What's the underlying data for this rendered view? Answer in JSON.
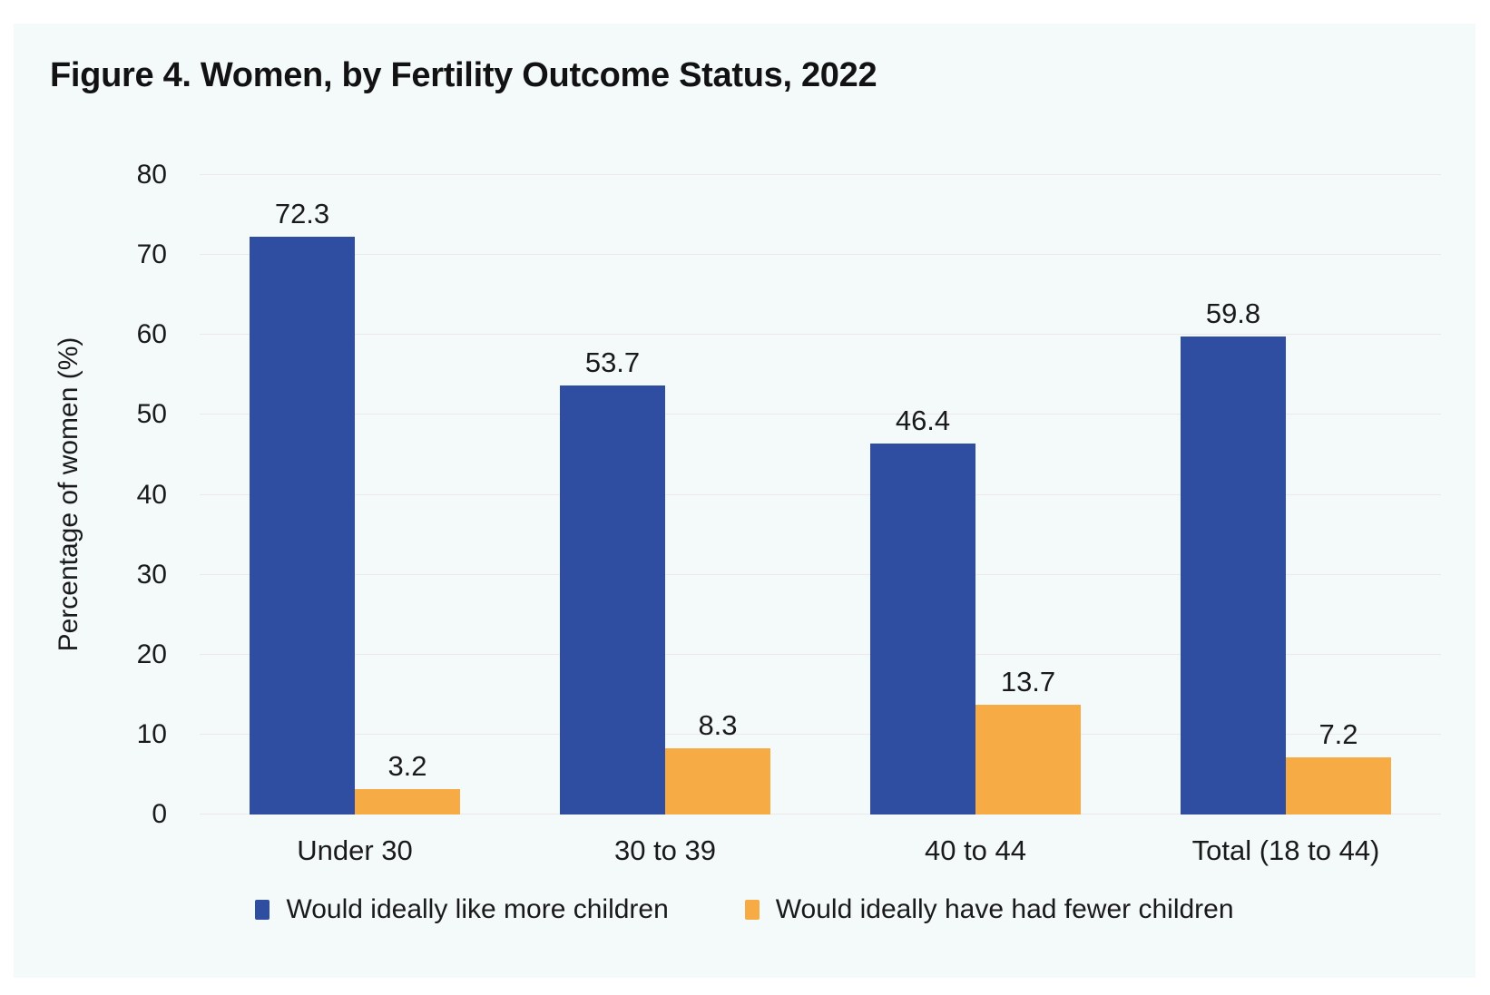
{
  "chart_data": {
    "type": "bar",
    "title": "Figure 4. Women, by Fertility Outcome Status, 2022",
    "xlabel": "",
    "ylabel": "Percentage of women (%)",
    "ylim": [
      0,
      80
    ],
    "yticks": [
      0,
      10,
      20,
      30,
      40,
      50,
      60,
      70,
      80
    ],
    "grid": true,
    "legend_position": "bottom",
    "categories": [
      "Under 30",
      "30 to 39",
      "40 to 44",
      "Total (18 to 44)"
    ],
    "series": [
      {
        "name": "Would ideally like more children",
        "color": "#2F4EA1",
        "values": [
          72.3,
          53.7,
          46.4,
          59.8
        ]
      },
      {
        "name": "Would ideally have had fewer children",
        "color": "#F7AB45",
        "values": [
          3.2,
          8.3,
          13.7,
          7.2
        ]
      }
    ]
  },
  "colors": {
    "panel_background": "#F4FAFA",
    "page_background": "#FFFFFF",
    "gridline": "#EDE8E9",
    "text": "#1A1A1A"
  }
}
